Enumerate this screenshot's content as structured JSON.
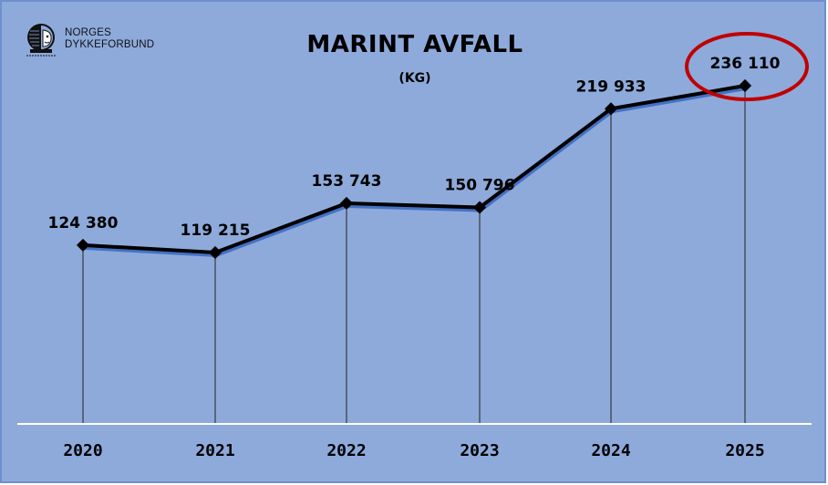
{
  "logo": {
    "line1": "NORGES",
    "line2": "DYKKEFORBUND",
    "icon": "diver-helmet-icon"
  },
  "chart_data": {
    "type": "line",
    "title": "MARINT AVFALL",
    "subtitle": "(KG)",
    "xlabel": "",
    "ylabel": "",
    "categories": [
      "2020",
      "2021",
      "2022",
      "2023",
      "2024",
      "2025"
    ],
    "values": [
      124380,
      119215,
      153743,
      150796,
      219933,
      236110
    ],
    "value_labels": [
      "124 380",
      "119 215",
      "153 743",
      "150 796",
      "219 933",
      "236 110"
    ],
    "highlight": {
      "index": 5,
      "shape": "ellipse",
      "color": "#c00000"
    },
    "grid": false,
    "drop_lines": true,
    "legend": "none",
    "colors": {
      "background": "#8eaadb",
      "line": "#000000",
      "line_shadow": "#4472c4",
      "axis": "#ffffff",
      "highlight": "#c00000"
    }
  }
}
